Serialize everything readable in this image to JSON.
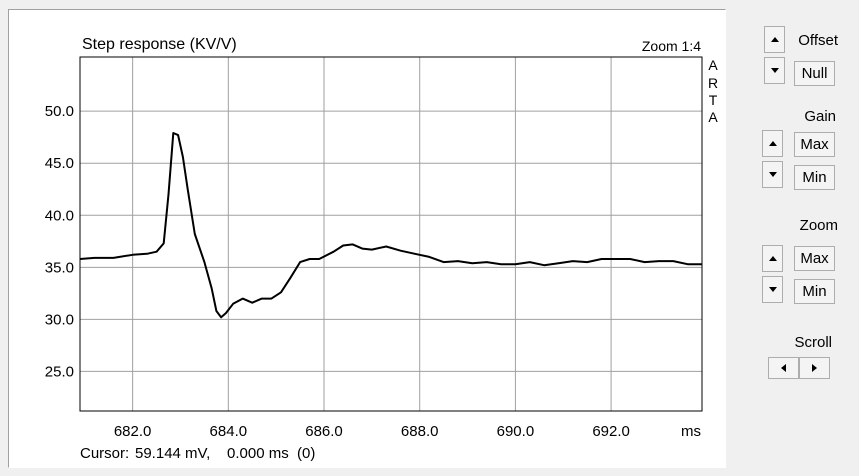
{
  "plot": {
    "title": "Step response (KV/V)",
    "zoom_label": "Zoom 1:4",
    "watermark": [
      "A",
      "R",
      "T",
      "A"
    ],
    "cursor_label": "Cursor:",
    "cursor_value": "59.144 mV,    0.000 ms  (0)",
    "x_unit": "ms"
  },
  "chart_data": {
    "type": "line",
    "title": "Step response (KV/V)",
    "xlabel": "ms",
    "ylabel": "",
    "xlim": [
      680.9,
      693.9
    ],
    "ylim": [
      21.2,
      55.2
    ],
    "x_ticks": [
      682.0,
      684.0,
      686.0,
      688.0,
      690.0,
      692.0
    ],
    "x_tick_labels": [
      "682.0",
      "684.0",
      "686.0",
      "688.0",
      "690.0",
      "692.0"
    ],
    "y_ticks": [
      25.0,
      30.0,
      35.0,
      40.0,
      45.0,
      50.0
    ],
    "y_tick_labels": [
      "25.0",
      "30.0",
      "35.0",
      "40.0",
      "45.0",
      "50.0"
    ],
    "grid": true,
    "series": [
      {
        "color": "#000000",
        "x": [
          680.9,
          681.2,
          681.6,
          682.0,
          682.3,
          682.5,
          682.65,
          682.75,
          682.85,
          682.95,
          683.05,
          683.15,
          683.3,
          683.5,
          683.65,
          683.75,
          683.85,
          683.95,
          684.1,
          684.3,
          684.5,
          684.7,
          684.9,
          685.1,
          685.3,
          685.5,
          685.7,
          685.9,
          686.2,
          686.4,
          686.6,
          686.8,
          687.0,
          687.3,
          687.6,
          687.9,
          688.2,
          688.5,
          688.8,
          689.1,
          689.4,
          689.7,
          690.0,
          690.3,
          690.6,
          690.9,
          691.2,
          691.5,
          691.8,
          692.1,
          692.4,
          692.7,
          693.0,
          693.3,
          693.6,
          693.9
        ],
        "y": [
          35.8,
          35.9,
          35.9,
          36.2,
          36.3,
          36.5,
          37.3,
          42.0,
          47.9,
          47.7,
          45.6,
          42.5,
          38.2,
          35.5,
          33.0,
          30.8,
          30.2,
          30.6,
          31.5,
          32.0,
          31.6,
          32.0,
          32.0,
          32.6,
          34.0,
          35.5,
          35.8,
          35.8,
          36.5,
          37.1,
          37.2,
          36.8,
          36.7,
          37.0,
          36.6,
          36.3,
          36.0,
          35.5,
          35.6,
          35.4,
          35.5,
          35.3,
          35.3,
          35.5,
          35.2,
          35.4,
          35.6,
          35.5,
          35.8,
          35.8,
          35.8,
          35.5,
          35.6,
          35.6,
          35.3,
          35.3
        ]
      }
    ]
  },
  "controls": {
    "offset_label": "Offset",
    "null_label": "Null",
    "gain_label": "Gain",
    "gain_max": "Max",
    "gain_min": "Min",
    "zoom_label": "Zoom",
    "zoom_max": "Max",
    "zoom_min": "Min",
    "scroll_label": "Scroll",
    "icons": {
      "up": "arrow-up-icon",
      "down": "arrow-down-icon",
      "left": "arrow-left-icon",
      "right": "arrow-right-icon"
    }
  }
}
